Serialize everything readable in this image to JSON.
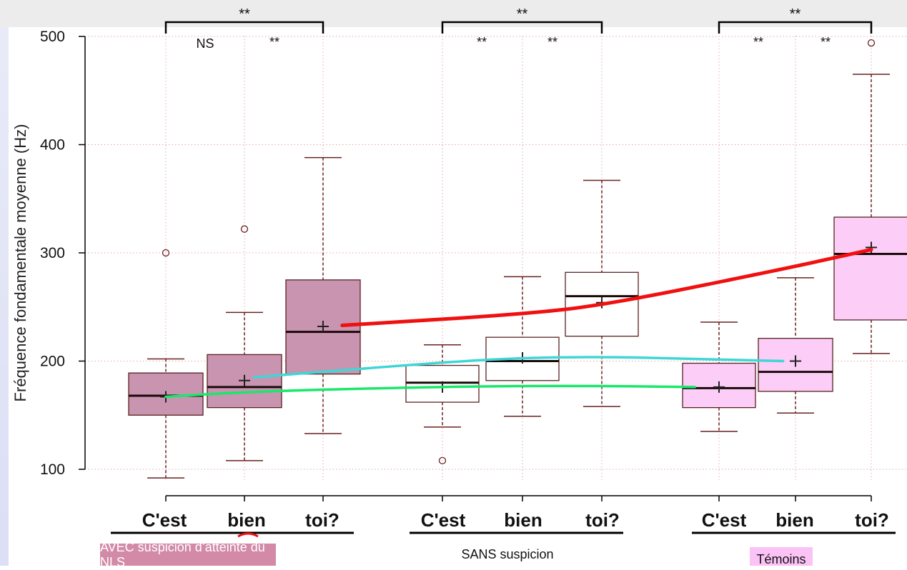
{
  "chart_data": {
    "type": "box",
    "ylabel": "Fréquence fondamentale moyenne (Hz)",
    "ylim": [
      75,
      510
    ],
    "yticks": [
      100,
      200,
      300,
      400,
      500
    ],
    "grid": true,
    "groups": [
      {
        "label": "AVEC suspicion d’atteinte du NLS",
        "fill": "#c994b0",
        "boxes": [
          {
            "category": "C'est",
            "whisker_low": 92,
            "q1": 150,
            "median": 168,
            "q3": 189,
            "whisker_high": 202,
            "mean": 167,
            "outliers": [
              300
            ]
          },
          {
            "category": "bien",
            "whisker_low": 108,
            "q1": 157,
            "median": 176,
            "q3": 206,
            "whisker_high": 245,
            "mean": 182,
            "outliers": [
              322
            ]
          },
          {
            "category": "toi?",
            "whisker_low": 133,
            "q1": 188,
            "median": 227,
            "q3": 275,
            "whisker_high": 388,
            "mean": 232,
            "outliers": []
          }
        ],
        "significance_pairs": [
          "NS",
          "**"
        ],
        "significance_bracket": "**"
      },
      {
        "label": "SANS suspicion",
        "fill": "#ffffff",
        "boxes": [
          {
            "category": "C'est",
            "whisker_low": 139,
            "q1": 162,
            "median": 180,
            "q3": 196,
            "whisker_high": 215,
            "mean": 176,
            "outliers": [
              108
            ]
          },
          {
            "category": "bien",
            "whisker_low": 149,
            "q1": 182,
            "median": 200,
            "q3": 222,
            "whisker_high": 278,
            "mean": 203,
            "outliers": []
          },
          {
            "category": "toi?",
            "whisker_low": 158,
            "q1": 223,
            "median": 260,
            "q3": 282,
            "whisker_high": 367,
            "mean": 254,
            "outliers": []
          }
        ],
        "significance_pairs": [
          "**",
          "**"
        ],
        "significance_bracket": "**"
      },
      {
        "label": "Témoins",
        "fill": "#fbcdf7",
        "boxes": [
          {
            "category": "C'est",
            "whisker_low": 135,
            "q1": 157,
            "median": 175,
            "q3": 198,
            "whisker_high": 236,
            "mean": 176,
            "outliers": []
          },
          {
            "category": "bien",
            "whisker_low": 152,
            "q1": 172,
            "median": 190,
            "q3": 221,
            "whisker_high": 277,
            "mean": 200,
            "outliers": []
          },
          {
            "category": "toi?",
            "whisker_low": 207,
            "q1": 238,
            "median": 299,
            "q3": 333,
            "whisker_high": 465,
            "mean": 305,
            "outliers": [
              494
            ]
          }
        ],
        "significance_pairs": [
          "**",
          "**"
        ],
        "significance_bracket": "**"
      }
    ],
    "trend_lines": [
      {
        "color": "#19e86b",
        "points": [
          [
            0,
            167
          ],
          [
            1,
            172
          ],
          [
            3,
            176
          ],
          [
            4,
            177
          ],
          [
            5,
            177
          ],
          [
            6,
            176
          ]
        ]
      },
      {
        "color": "#3fd6d6",
        "points": [
          [
            1,
            185
          ],
          [
            3,
            198
          ],
          [
            4,
            203
          ],
          [
            5,
            204
          ],
          [
            6,
            202
          ],
          [
            7,
            200
          ]
        ]
      },
      {
        "color": "#f01010",
        "points": [
          [
            2,
            233
          ],
          [
            4,
            243
          ],
          [
            5,
            252
          ],
          [
            7,
            285
          ],
          [
            8,
            303
          ]
        ]
      }
    ]
  }
}
